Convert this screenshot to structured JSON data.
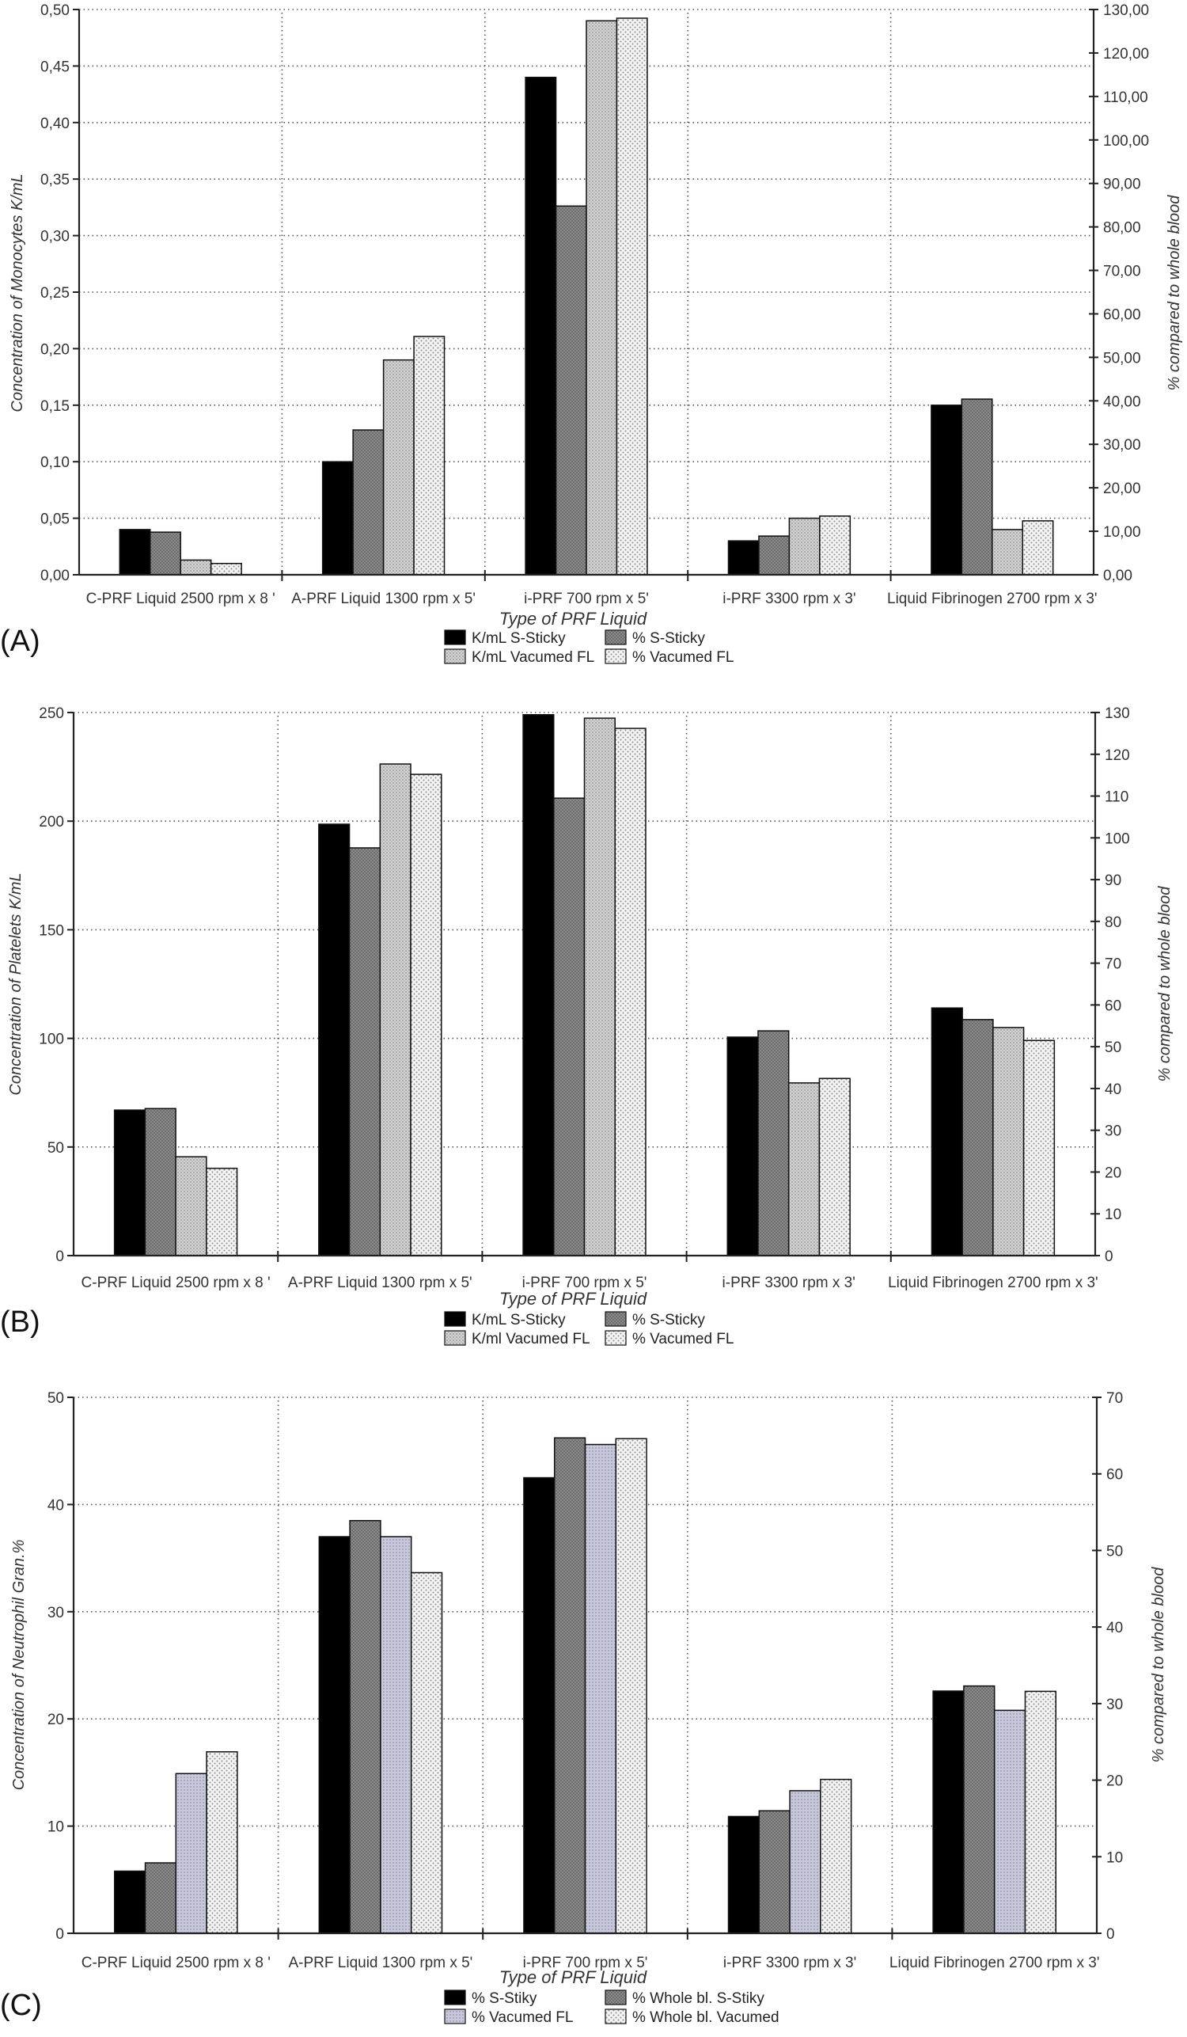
{
  "figure": {
    "panels": [
      "(A)",
      "(B)",
      "(C)"
    ]
  },
  "chart_data": [
    {
      "type": "bar",
      "panel_label": "(A)",
      "title": "",
      "xlabel": "Type of PRF Liquid",
      "ylabel": "Concentration of Monocytes K/mL",
      "y2label": "% compared to whole blood",
      "ylim": [
        0,
        0.5
      ],
      "y2lim": [
        0,
        130
      ],
      "yticks": [
        "0,00",
        "0,05",
        "0,10",
        "0,15",
        "0,20",
        "0,25",
        "0,30",
        "0,35",
        "0,40",
        "0,45",
        "0,50"
      ],
      "y2ticks": [
        "0,00",
        "10,00",
        "20,00",
        "30,00",
        "40,00",
        "50,00",
        "60,00",
        "70,00",
        "80,00",
        "90,00",
        "100,00",
        "110,00",
        "120,00",
        "130,00"
      ],
      "grid": true,
      "legend_position": "bottom-center",
      "categories": [
        "C-PRF Liquid 2500 rpm  x 8 '",
        "A-PRF Liquid 1300 rpm x 5'",
        "i-PRF 700 rpm x 5'",
        "i-PRF 3300 rpm x 3'",
        "Liquid Fibrinogen 2700 rpm x 3'"
      ],
      "series": [
        {
          "name": "K/mL S-Sticky",
          "axis": "left",
          "fill": "black",
          "values": [
            0.04,
            0.1,
            0.44,
            0.03,
            0.15
          ]
        },
        {
          "name": "% S-Sticky",
          "axis": "right",
          "fill": "darkgray",
          "values": [
            9.8,
            33.3,
            84.8,
            8.9,
            40.4
          ]
        },
        {
          "name": "K/mL Vacumed FL",
          "axis": "left",
          "fill": "lightgray",
          "values": [
            0.013,
            0.19,
            0.49,
            0.05,
            0.04
          ]
        },
        {
          "name": "% Vacumed FL",
          "axis": "right",
          "fill": "dotted",
          "values": [
            2.6,
            54.8,
            128.0,
            13.5,
            12.4
          ]
        }
      ]
    },
    {
      "type": "bar",
      "panel_label": "(B)",
      "title": "",
      "xlabel": "Type of PRF Liquid",
      "ylabel": "Concentration of Platelets K/mL",
      "y2label": "% compared to whole blood",
      "ylim": [
        0,
        250
      ],
      "y2lim": [
        0,
        130
      ],
      "yticks": [
        "0",
        "50",
        "100",
        "150",
        "200",
        "250"
      ],
      "y2ticks": [
        "0",
        "10",
        "20",
        "30",
        "40",
        "50",
        "60",
        "70",
        "80",
        "90",
        "100",
        "110",
        "120",
        "130"
      ],
      "grid": true,
      "legend_position": "bottom-center",
      "categories": [
        "C-PRF Liquid 2500 rpm  x 8 '",
        "A-PRF Liquid 1300 rpm x 5'",
        "i-PRF 700 rpm x 5'",
        "i-PRF 3300 rpm x 3'",
        "Liquid Fibrinogen 2700 rpm x 3'"
      ],
      "series": [
        {
          "name": "K/mL S-Sticky",
          "axis": "left",
          "fill": "black",
          "values": [
            67,
            198.6,
            249,
            100.6,
            114
          ]
        },
        {
          "name": "% S-Sticky",
          "axis": "right",
          "fill": "darkgray",
          "values": [
            35.2,
            97.6,
            109.5,
            53.8,
            56.5
          ]
        },
        {
          "name": "K/ml Vacumed FL",
          "axis": "left",
          "fill": "lightgray",
          "values": [
            45.5,
            226.3,
            247.4,
            79.5,
            105
          ]
        },
        {
          "name": "% Vacumed FL",
          "axis": "right",
          "fill": "dotted",
          "values": [
            20.9,
            115.2,
            126.2,
            42.4,
            51.5
          ]
        }
      ]
    },
    {
      "type": "bar",
      "panel_label": "(C)",
      "title": "",
      "xlabel": "Type of PRF Liquid",
      "ylabel": "Concentration of Neutrophil Gran.%",
      "y2label": "% compared to whole blood",
      "ylim": [
        0,
        50
      ],
      "y2lim": [
        0,
        70
      ],
      "yticks": [
        "0",
        "10",
        "20",
        "30",
        "40",
        "50"
      ],
      "y2ticks": [
        "0",
        "10",
        "20",
        "30",
        "40",
        "50",
        "60",
        "70"
      ],
      "grid": true,
      "legend_position": "bottom-center",
      "categories": [
        "C-PRF Liquid 2500 rpm  x 8 '",
        "A-PRF Liquid 1300 rpm x 5'",
        "i-PRF 700 rpm x 5'",
        "i-PRF 3300 rpm x 3'",
        "Liquid Fibrinogen 2700 rpm x 3'"
      ],
      "series": [
        {
          "name": "% S-Stiky",
          "axis": "left",
          "fill": "black",
          "values": [
            5.8,
            37.0,
            42.5,
            10.9,
            22.6
          ]
        },
        {
          "name": "% Whole bl. S-Stiky",
          "axis": "right",
          "fill": "darkgray",
          "values": [
            9.2,
            53.9,
            64.7,
            16.0,
            32.3
          ]
        },
        {
          "name": "% Vacumed FL",
          "axis": "left",
          "fill": "lavender",
          "values": [
            14.9,
            37.0,
            45.6,
            13.3,
            20.8
          ]
        },
        {
          "name": "% Whole bl. Vacumed",
          "axis": "right",
          "fill": "dotted",
          "values": [
            23.7,
            47.1,
            64.6,
            20.1,
            31.6
          ]
        }
      ]
    }
  ]
}
